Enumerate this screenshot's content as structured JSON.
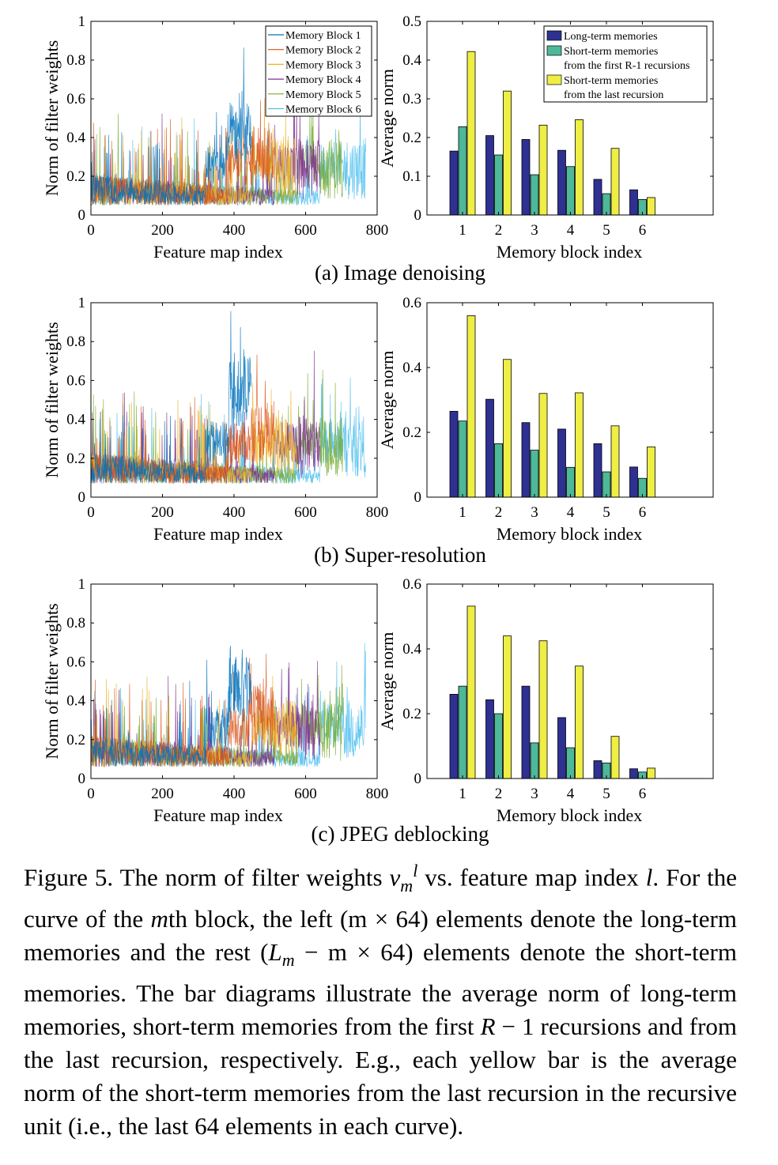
{
  "figure_label": "Figure 5.",
  "caption_parts": {
    "p1": " The norm of filter weights ",
    "sym_v": "v",
    "sym_m": "m",
    "sym_l": "l",
    "p2": " vs. feature map index ",
    "sym_l2": "l",
    "p3": ". For the curve of the ",
    "sym_m2": "m",
    "p4": "th block, the left (",
    "p5": "m × 64",
    "p6": ") elements denote the long-term memories and the rest (",
    "p7": "L",
    "p8": "m",
    "p9": " − m × 64",
    "p10": ") elements denote the short-term memories. The bar diagrams illustrate the average norm of long-term memories, short-term memories from the first ",
    "p11": "R",
    "p12": " − 1 recursions and from the last recursion, respectively. E.g., each yellow bar is the average norm of the short-term memories from the last recursion in the recursive unit (i.e., the last 64 elements in each curve)."
  },
  "colors": {
    "block1": "#0072BD",
    "block2": "#D95319",
    "block3": "#EDB120",
    "block4": "#7E2F8E",
    "block5": "#77AC30",
    "block6": "#4DBEEE",
    "long_term": "#2E3192",
    "short_first": "#4DB89A",
    "short_last": "#EEEE44"
  },
  "chart_data": [
    {
      "type": "line",
      "panel": "(a) Image denoising",
      "xlabel": "Feature map index",
      "ylabel": "Norm of filter weights",
      "xlim": [
        0,
        800
      ],
      "ylim": [
        0,
        1
      ],
      "xticks": [
        "0",
        "200",
        "400",
        "600",
        "800"
      ],
      "yticks": [
        "0",
        "0.2",
        "0.4",
        "0.6",
        "0.8",
        "1"
      ],
      "legend_position": "top-right",
      "series": [
        {
          "name": "Memory Block 1",
          "length": 448
        },
        {
          "name": "Memory Block 2",
          "length": 512
        },
        {
          "name": "Memory Block 3",
          "length": 576
        },
        {
          "name": "Memory Block 4",
          "length": 640
        },
        {
          "name": "Memory Block 5",
          "length": 704
        },
        {
          "name": "Memory Block 6",
          "length": 768
        }
      ]
    },
    {
      "type": "bar",
      "panel": "(a) Image denoising",
      "xlabel": "Memory block index",
      "ylabel": "Average norm",
      "ylim": [
        0,
        0.5
      ],
      "yticks": [
        "0",
        "0.1",
        "0.2",
        "0.3",
        "0.4",
        "0.5"
      ],
      "categories": [
        "1",
        "2",
        "3",
        "4",
        "5",
        "6"
      ],
      "legend_position": "top-right",
      "series": [
        {
          "name": "Long-term memories",
          "values": [
            0.165,
            0.205,
            0.195,
            0.167,
            0.092,
            0.065
          ]
        },
        {
          "name": "Short-term memories from the first R-1 recursions",
          "values": [
            0.228,
            0.155,
            0.104,
            0.125,
            0.055,
            0.04
          ]
        },
        {
          "name": "Short-term memories from the last recursion",
          "values": [
            0.422,
            0.32,
            0.232,
            0.246,
            0.172,
            0.045
          ]
        }
      ]
    },
    {
      "type": "line",
      "panel": "(b) Super-resolution",
      "xlabel": "Feature map index",
      "ylabel": "Norm of filter weights",
      "xlim": [
        0,
        800
      ],
      "ylim": [
        0,
        1
      ],
      "xticks": [
        "0",
        "200",
        "400",
        "600",
        "800"
      ],
      "yticks": [
        "0",
        "0.2",
        "0.4",
        "0.6",
        "0.8",
        "1"
      ]
    },
    {
      "type": "bar",
      "panel": "(b) Super-resolution",
      "xlabel": "Memory block index",
      "ylabel": "Average norm",
      "ylim": [
        0,
        0.6
      ],
      "yticks": [
        "0",
        "0.2",
        "0.4",
        "0.6"
      ],
      "categories": [
        "1",
        "2",
        "3",
        "4",
        "5",
        "6"
      ],
      "series": [
        {
          "values": [
            0.265,
            0.302,
            0.23,
            0.21,
            0.165,
            0.093
          ]
        },
        {
          "values": [
            0.235,
            0.165,
            0.145,
            0.092,
            0.078,
            0.058
          ]
        },
        {
          "values": [
            0.56,
            0.425,
            0.32,
            0.322,
            0.22,
            0.155
          ]
        }
      ]
    },
    {
      "type": "line",
      "panel": "(c) JPEG deblocking",
      "xlabel": "Feature map index",
      "ylabel": "Norm of filter weights",
      "xlim": [
        0,
        800
      ],
      "ylim": [
        0,
        1
      ],
      "xticks": [
        "0",
        "200",
        "400",
        "600",
        "800"
      ],
      "yticks": [
        "0",
        "0.2",
        "0.4",
        "0.6",
        "0.8",
        "1"
      ]
    },
    {
      "type": "bar",
      "panel": "(c) JPEG deblocking",
      "xlabel": "Memory block index",
      "ylabel": "Average norm",
      "ylim": [
        0,
        0.6
      ],
      "yticks": [
        "0",
        "0.2",
        "0.4",
        "0.6"
      ],
      "categories": [
        "1",
        "2",
        "3",
        "4",
        "5",
        "6"
      ],
      "series": [
        {
          "values": [
            0.26,
            0.243,
            0.285,
            0.188,
            0.055,
            0.03
          ]
        },
        {
          "values": [
            0.285,
            0.2,
            0.11,
            0.095,
            0.048,
            0.02
          ]
        },
        {
          "values": [
            0.532,
            0.44,
            0.425,
            0.347,
            0.13,
            0.032
          ]
        }
      ]
    }
  ]
}
